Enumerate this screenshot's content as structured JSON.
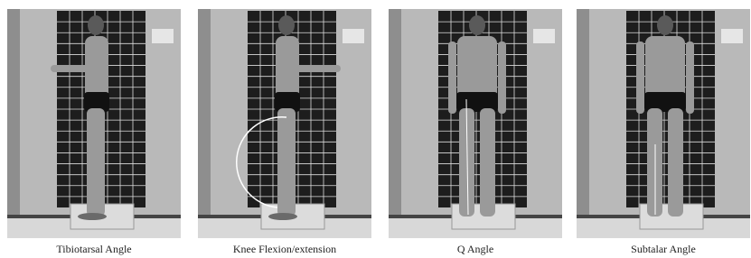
{
  "panels": [
    {
      "caption": "Tibiotarsal Angle"
    },
    {
      "caption": "Knee Flexion/extension"
    },
    {
      "caption": "Q Angle"
    },
    {
      "caption": "Subtalar Angle"
    }
  ]
}
